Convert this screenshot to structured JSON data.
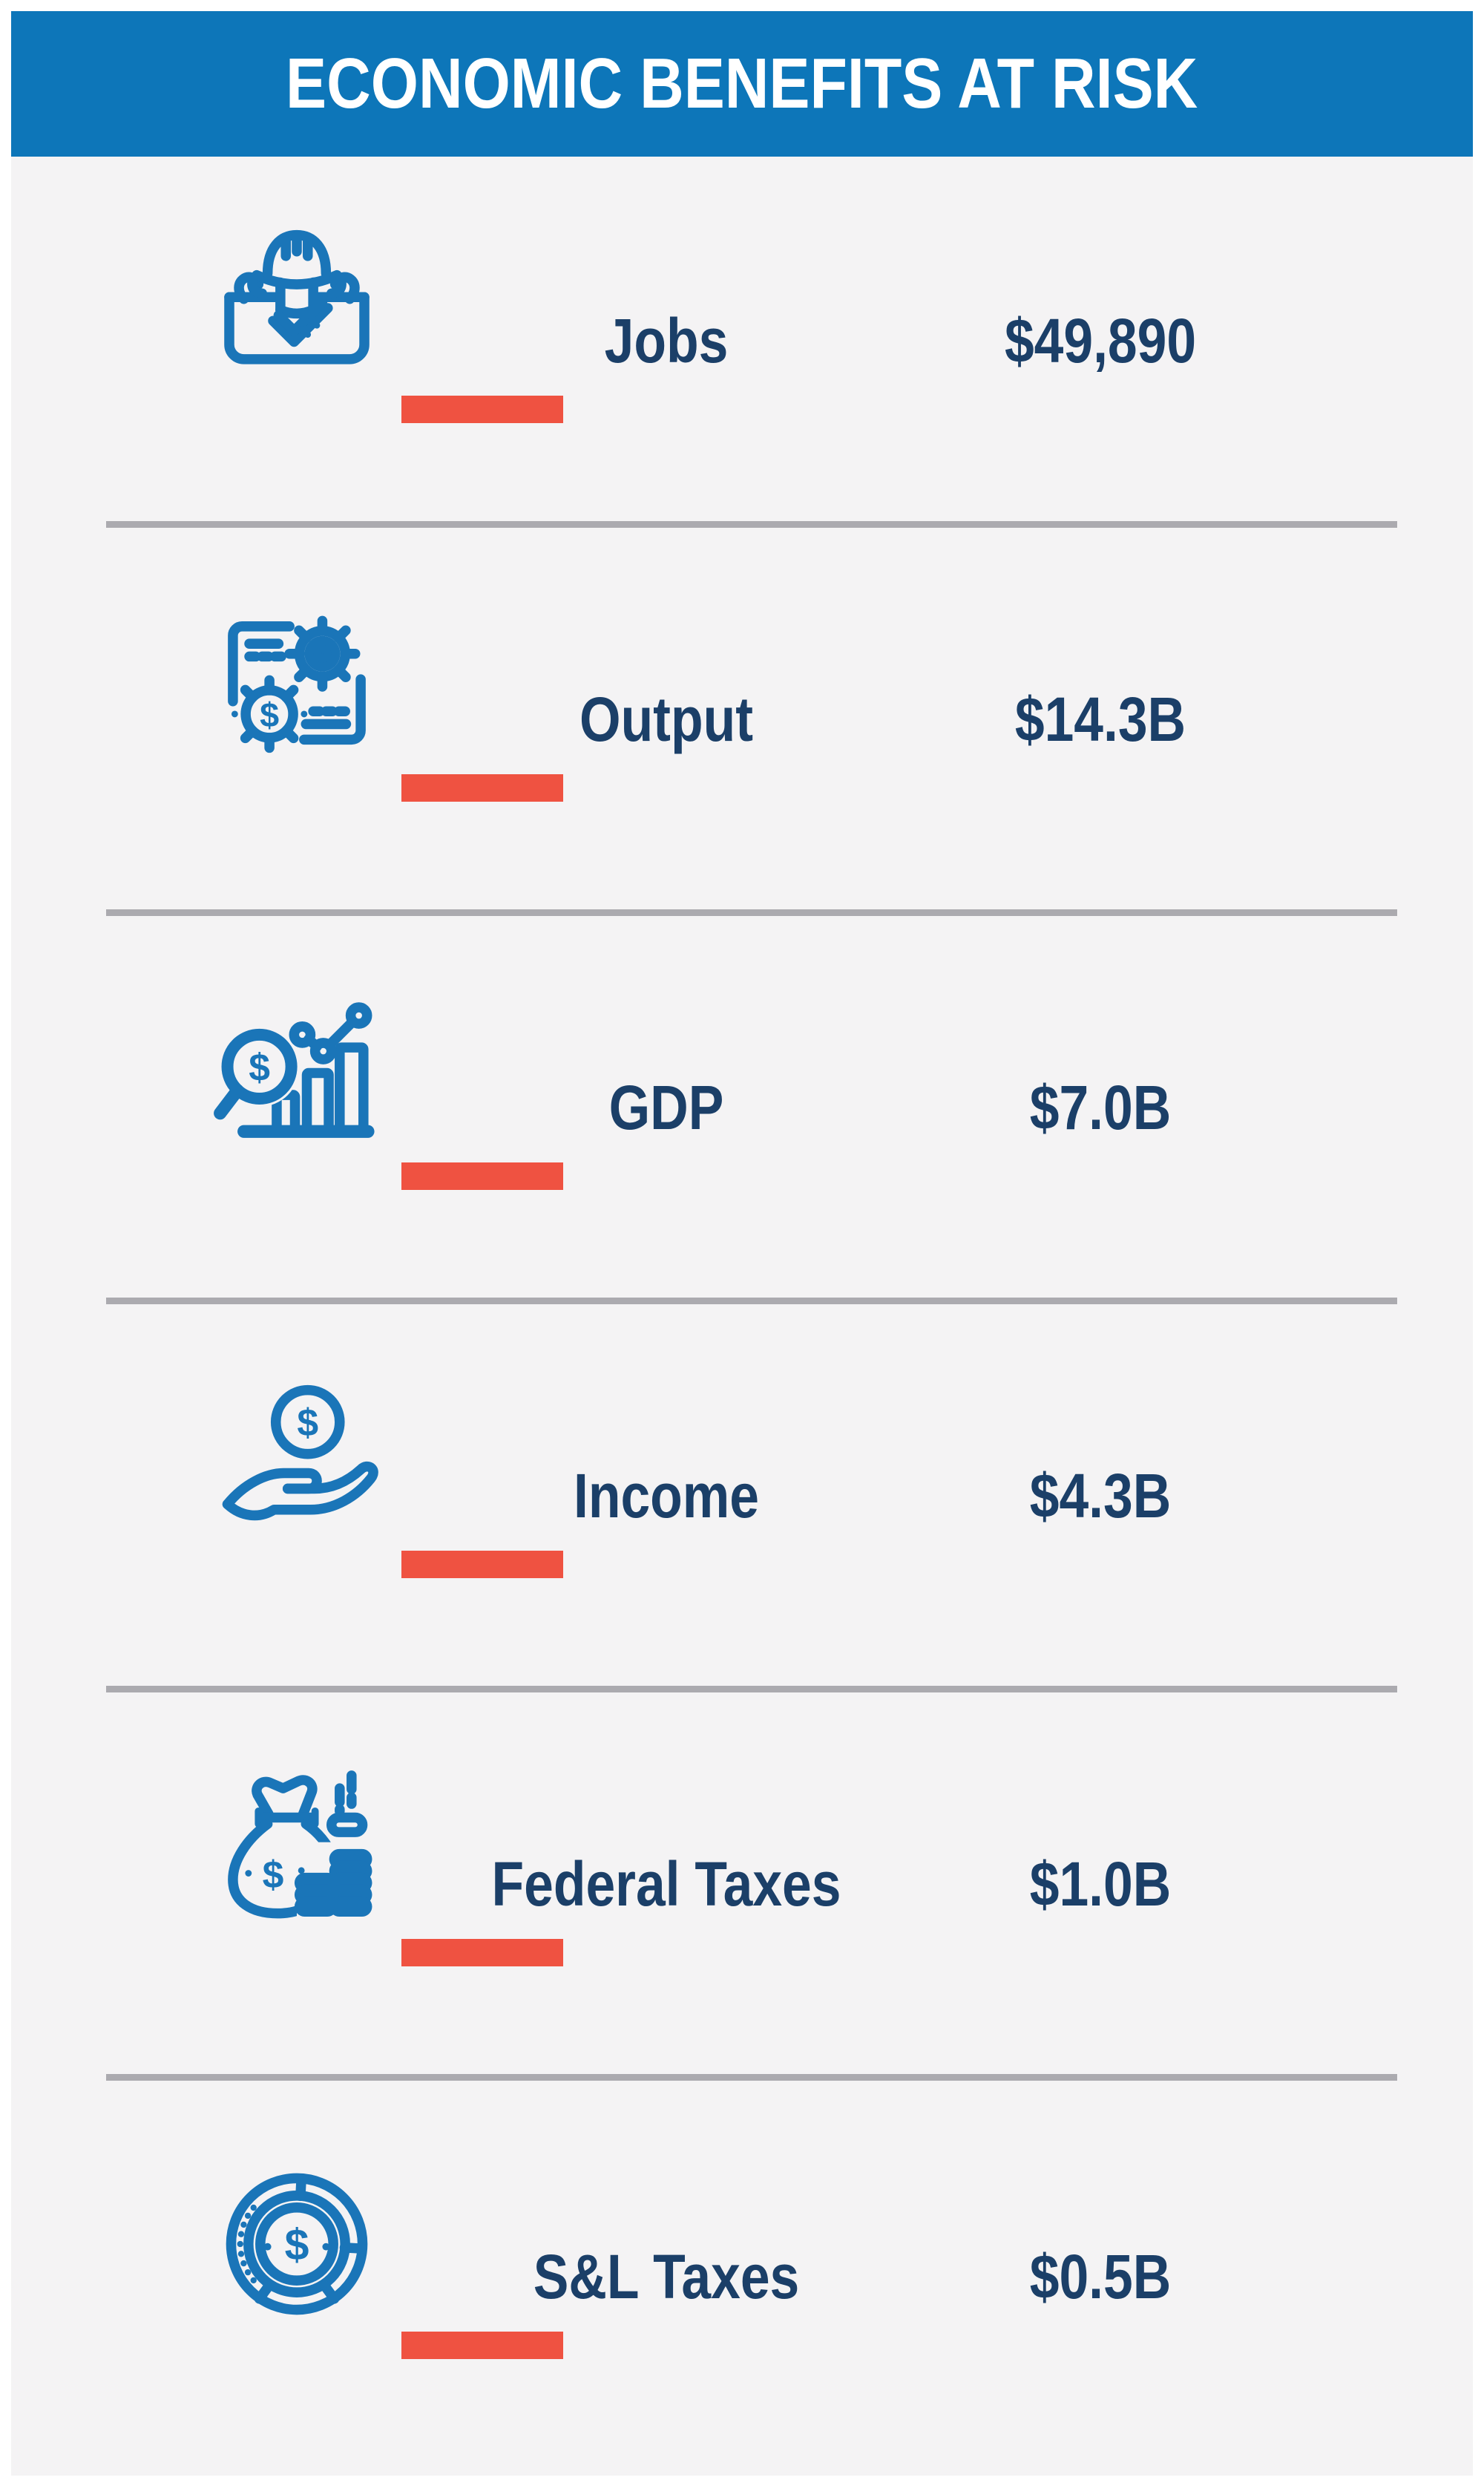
{
  "header": {
    "title": "ECONOMIC BENEFITS AT RISK"
  },
  "rows": [
    {
      "label": "Jobs",
      "value": "$49,890",
      "icon": "hard-hat-toolbox-icon"
    },
    {
      "label": "Output",
      "value": "$14.3B",
      "icon": "document-gears-dollar-icon"
    },
    {
      "label": "GDP",
      "value": "$7.0B",
      "icon": "magnifier-bar-chart-icon"
    },
    {
      "label": "Income",
      "value": "$4.3B",
      "icon": "hand-dollar-coin-icon"
    },
    {
      "label": "Federal Taxes",
      "value": "$1.0B",
      "icon": "money-bag-coins-icon"
    },
    {
      "label": "S&L Taxes",
      "value": "$0.5B",
      "icon": "coin-donut-chart-icon"
    }
  ],
  "chart_data": {
    "type": "table",
    "title": "ECONOMIC BENEFITS AT RISK",
    "categories": [
      "Jobs",
      "Output",
      "GDP",
      "Income",
      "Federal Taxes",
      "S&L Taxes"
    ],
    "values": [
      "$49,890",
      "$14.3B",
      "$7.0B",
      "$4.3B",
      "$1.0B",
      "$0.5B"
    ]
  },
  "colors": {
    "header_bg": "#0d76b9",
    "icon_blue": "#1a75b8",
    "text_navy": "#1b3f68",
    "accent_red": "#ef5241",
    "content_bg": "#f4f3f4",
    "divider_gray": "#abaaaf",
    "page_bg": "#ffffff"
  }
}
